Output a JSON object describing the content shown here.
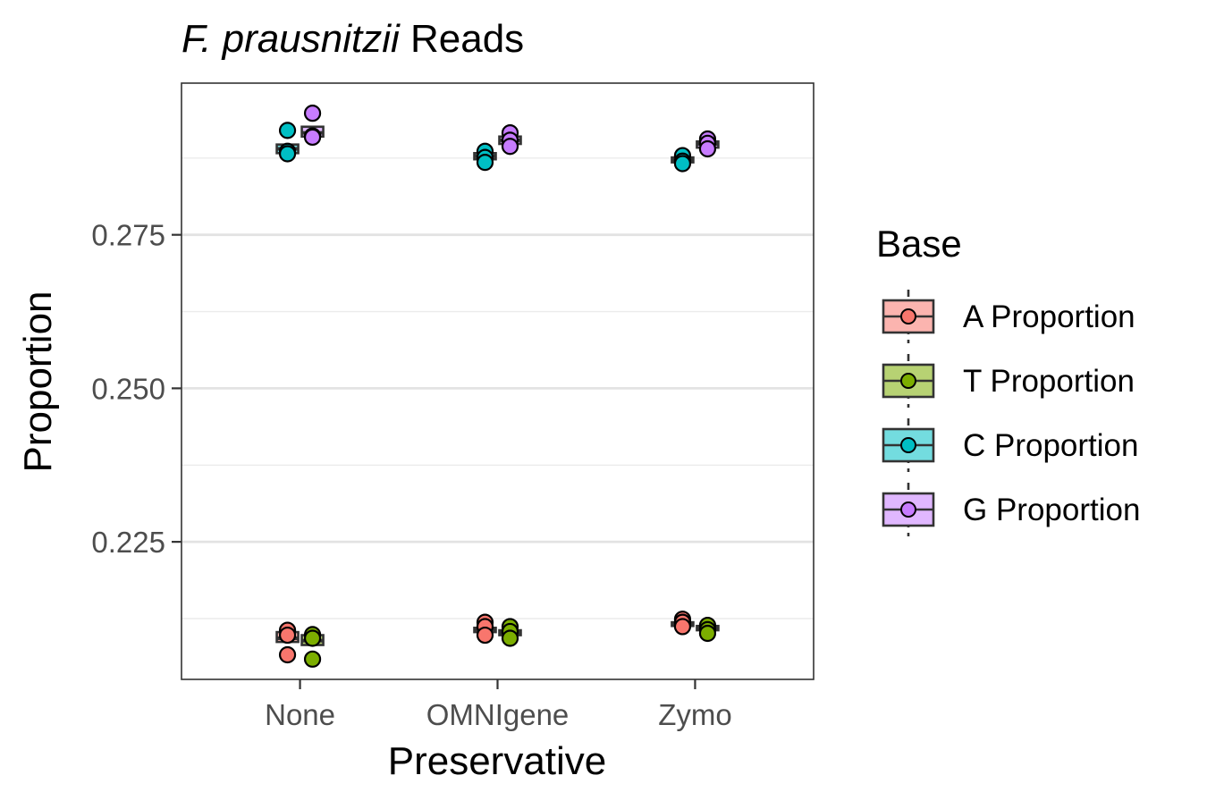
{
  "title_italic": "F. prausnitzii",
  "title_rest": " Reads",
  "chart_data": {
    "type": "boxplot",
    "xlabel": "Preservative",
    "ylabel": "Proportion",
    "categories": [
      "None",
      "OMNIgene",
      "Zymo"
    ],
    "ylim": [
      0.2026,
      0.2997
    ],
    "y_ticks": [
      0.225,
      0.25,
      0.275
    ],
    "y_tick_labels": [
      "0.225",
      "0.250",
      "0.275"
    ],
    "y_minor_gridlines": [
      0.2125,
      0.2375,
      0.2625,
      0.2875
    ],
    "grid": true,
    "legend": {
      "title": "Base",
      "position": "right",
      "entries": [
        "A Proportion",
        "T Proportion",
        "C Proportion",
        "G Proportion"
      ]
    },
    "series": [
      {
        "name": "A Proportion",
        "color": "#F8766D",
        "box": [
          {
            "q1": 0.2087,
            "median": 0.2093,
            "q3": 0.2103
          },
          {
            "q1": 0.2103,
            "median": 0.2106,
            "q3": 0.211
          },
          {
            "q1": 0.2113,
            "median": 0.2116,
            "q3": 0.2119
          }
        ],
        "points": [
          [
            0.2106,
            0.2098,
            0.2066
          ],
          [
            0.2119,
            0.2112,
            0.2098
          ],
          [
            0.2124,
            0.2119,
            0.2112
          ]
        ]
      },
      {
        "name": "T Proportion",
        "color": "#7CAE00",
        "box": [
          {
            "q1": 0.2082,
            "median": 0.2089,
            "q3": 0.2098
          },
          {
            "q1": 0.2098,
            "median": 0.2102,
            "q3": 0.2106
          },
          {
            "q1": 0.2106,
            "median": 0.211,
            "q3": 0.2113
          }
        ],
        "points": [
          [
            0.2099,
            0.2093,
            0.2059
          ],
          [
            0.2112,
            0.2104,
            0.2093
          ],
          [
            0.2114,
            0.2107,
            0.2101
          ]
        ]
      },
      {
        "name": "C Proportion",
        "color": "#00BFC4",
        "box": [
          {
            "q1": 0.2883,
            "median": 0.289,
            "q3": 0.2897
          },
          {
            "q1": 0.2873,
            "median": 0.2878,
            "q3": 0.2883
          },
          {
            "q1": 0.2868,
            "median": 0.2872,
            "q3": 0.2876
          }
        ],
        "points": [
          [
            0.292,
            0.2886,
            0.2882
          ],
          [
            0.2886,
            0.2876,
            0.2868
          ],
          [
            0.2879,
            0.287,
            0.2866
          ]
        ]
      },
      {
        "name": "G Proportion",
        "color": "#C77CFF",
        "box": [
          {
            "q1": 0.291,
            "median": 0.2916,
            "q3": 0.2926
          },
          {
            "q1": 0.2898,
            "median": 0.2904,
            "q3": 0.291
          },
          {
            "q1": 0.2892,
            "median": 0.2898,
            "q3": 0.2902
          }
        ],
        "points": [
          [
            0.2948,
            0.2911,
            0.2909
          ],
          [
            0.2916,
            0.2904,
            0.2894
          ],
          [
            0.2906,
            0.2899,
            0.289
          ]
        ]
      }
    ]
  }
}
